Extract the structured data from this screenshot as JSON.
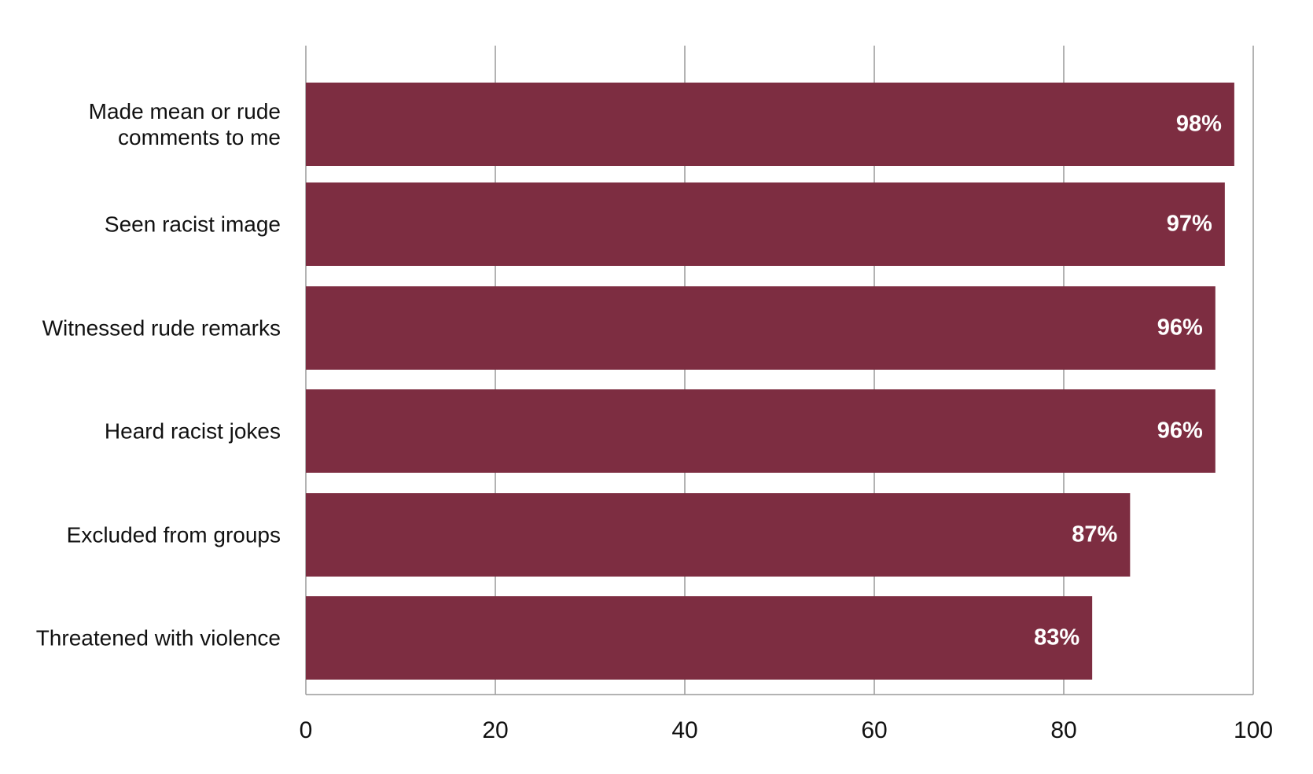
{
  "chart_data": {
    "type": "bar",
    "orientation": "horizontal",
    "categories": [
      "Made mean or rude comments to me",
      "Seen racist image",
      "Witnessed rude remarks",
      "Heard racist jokes",
      "Excluded from groups",
      "Threatened with violence"
    ],
    "values": [
      98,
      97,
      96,
      96,
      87,
      83
    ],
    "value_labels": [
      "98%",
      "97%",
      "96%",
      "96%",
      "87%",
      "83%"
    ],
    "color": "#7d2d41",
    "xlim": [
      0,
      100
    ],
    "xticks": [
      0,
      20,
      40,
      60,
      80,
      100
    ],
    "grid": true
  }
}
